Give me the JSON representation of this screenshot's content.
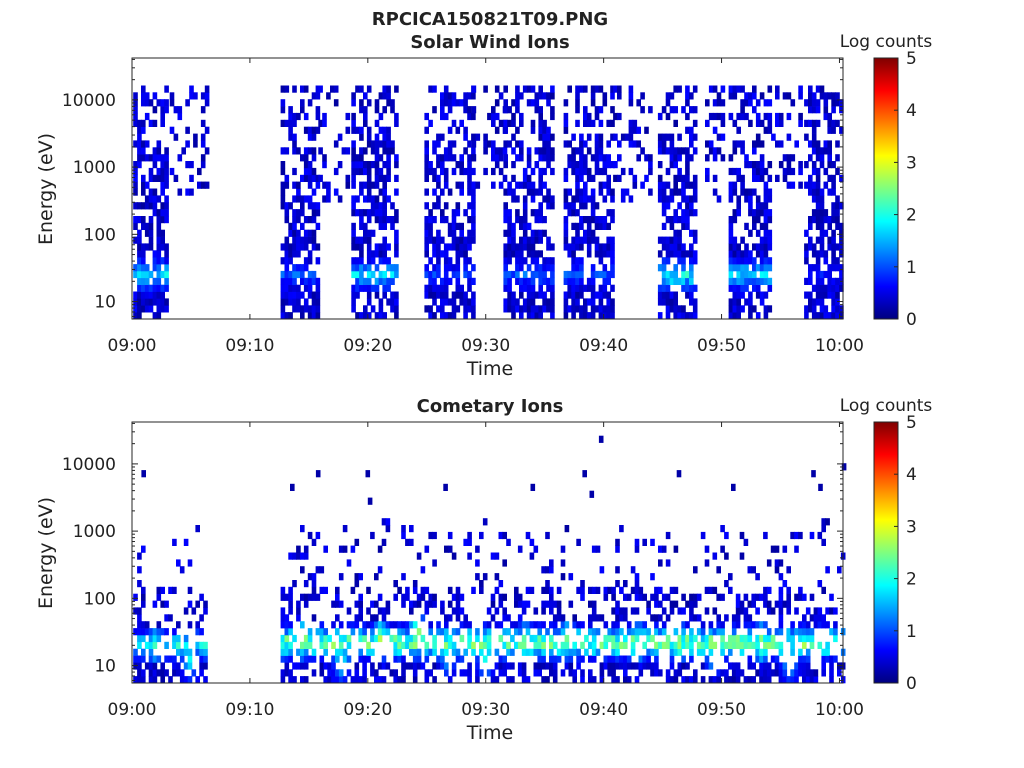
{
  "figure_title": "RPCICA150821T09.PNG",
  "colorbar_scale": [
    "#00007f",
    "#0000ff",
    "#007fff",
    "#00ffff",
    "#7fff7f",
    "#ffff00",
    "#ff7f00",
    "#ff0000",
    "#7f0000"
  ],
  "chart_data": [
    {
      "type": "heatmap",
      "title": "Solar Wind Ions",
      "xlabel": "Time",
      "ylabel": "Energy (eV)",
      "x_ticks": [
        "09:00",
        "09:10",
        "09:20",
        "09:30",
        "09:40",
        "09:50",
        "10:00"
      ],
      "x_range_minutes": [
        0,
        60.3
      ],
      "y_scale": "log",
      "y_ticks": [
        10,
        100,
        1000,
        10000
      ],
      "y_tick_labels": [
        "10",
        "100",
        "1000",
        "10000"
      ],
      "y_range": [
        5.5,
        42000
      ],
      "colorbar": {
        "label": "Log counts",
        "range": [
          0,
          5
        ],
        "ticks": [
          "0",
          "1",
          "2",
          "3",
          "4",
          "5"
        ]
      },
      "bursts": [
        {
          "start_min": 0.1,
          "end_min": 2.9,
          "emin": 6,
          "emax": 15000,
          "peak_energy": 25,
          "peak_level": 2.2
        },
        {
          "start_min": 3.2,
          "end_min": 6.2,
          "emin": 400,
          "emax": 15000,
          "peak_energy": 2000,
          "peak_level": 0.4
        },
        {
          "start_min": 12.6,
          "end_min": 15.8,
          "emin": 6,
          "emax": 15000,
          "peak_energy": 25,
          "peak_level": 1.3
        },
        {
          "start_min": 15.8,
          "end_min": 18.4,
          "emin": 300,
          "emax": 15000,
          "peak_energy": 2000,
          "peak_level": 0.3
        },
        {
          "start_min": 18.6,
          "end_min": 22.3,
          "emin": 6,
          "emax": 15000,
          "peak_energy": 25,
          "peak_level": 2.0
        },
        {
          "start_min": 24.8,
          "end_min": 28.8,
          "emin": 6,
          "emax": 15000,
          "peak_energy": 25,
          "peak_level": 1.1
        },
        {
          "start_min": 28.8,
          "end_min": 31.5,
          "emin": 500,
          "emax": 15000,
          "peak_energy": 2000,
          "peak_level": 0.3
        },
        {
          "start_min": 31.5,
          "end_min": 35.6,
          "emin": 6,
          "emax": 15000,
          "peak_energy": 25,
          "peak_level": 1.3
        },
        {
          "start_min": 36.6,
          "end_min": 40.8,
          "emin": 6,
          "emax": 15000,
          "peak_energy": 25,
          "peak_level": 1.2
        },
        {
          "start_min": 40.8,
          "end_min": 44.0,
          "emin": 300,
          "emax": 15000,
          "peak_energy": 2000,
          "peak_level": 0.3
        },
        {
          "start_min": 44.6,
          "end_min": 47.8,
          "emin": 6,
          "emax": 15000,
          "peak_energy": 25,
          "peak_level": 2.4
        },
        {
          "start_min": 48.6,
          "end_min": 50.0,
          "emin": 300,
          "emax": 15000,
          "peak_energy": 2000,
          "peak_level": 0.3
        },
        {
          "start_min": 50.6,
          "end_min": 54.2,
          "emin": 6,
          "emax": 15000,
          "peak_energy": 25,
          "peak_level": 2.1
        },
        {
          "start_min": 54.2,
          "end_min": 56.6,
          "emin": 500,
          "emax": 15000,
          "peak_energy": 2000,
          "peak_level": 0.3
        },
        {
          "start_min": 57.0,
          "end_min": 60.2,
          "emin": 6,
          "emax": 15000,
          "peak_energy": 25,
          "peak_level": 0.9
        }
      ]
    },
    {
      "type": "heatmap",
      "title": "Cometary Ions",
      "xlabel": "Time",
      "ylabel": "Energy (eV)",
      "x_ticks": [
        "09:00",
        "09:10",
        "09:20",
        "09:30",
        "09:40",
        "09:50",
        "10:00"
      ],
      "x_range_minutes": [
        0,
        60.3
      ],
      "y_scale": "log",
      "y_ticks": [
        10,
        100,
        1000,
        10000
      ],
      "y_tick_labels": [
        "10",
        "100",
        "1000",
        "10000"
      ],
      "y_range": [
        5.5,
        42000
      ],
      "colorbar": {
        "label": "Log counts",
        "range": [
          0,
          5
        ],
        "ticks": [
          "0",
          "1",
          "2",
          "3",
          "4",
          "5"
        ]
      },
      "bursts": [
        {
          "start_min": 0.1,
          "end_min": 6.2,
          "emin": 6,
          "emax": 1200,
          "peak_energy": 20,
          "peak_level": 2.3
        },
        {
          "start_min": 12.6,
          "end_min": 60.2,
          "emin": 6,
          "emax": 1500,
          "peak_energy": 22,
          "peak_level": 3.1
        }
      ],
      "hot_spots": [
        {
          "time_min": 1.8,
          "energy": 20,
          "level": 2.3
        },
        {
          "time_min": 4.7,
          "energy": 12,
          "level": 2.0
        },
        {
          "time_min": 14.2,
          "energy": 25,
          "level": 2.8
        },
        {
          "time_min": 17.6,
          "energy": 12,
          "level": 2.2
        },
        {
          "time_min": 20.9,
          "energy": 25,
          "level": 2.9
        },
        {
          "time_min": 24.0,
          "energy": 30,
          "level": 3.1
        },
        {
          "time_min": 26.6,
          "energy": 15,
          "level": 2.2
        },
        {
          "time_min": 29.8,
          "energy": 12,
          "level": 2.1
        },
        {
          "time_min": 33.2,
          "energy": 22,
          "level": 2.8
        },
        {
          "time_min": 36.8,
          "energy": 25,
          "level": 2.7
        },
        {
          "time_min": 42.8,
          "energy": 22,
          "level": 2.7
        },
        {
          "time_min": 46.2,
          "energy": 22,
          "level": 3.0
        },
        {
          "time_min": 49.2,
          "energy": 15,
          "level": 2.4
        },
        {
          "time_min": 53.2,
          "energy": 22,
          "level": 2.8
        },
        {
          "time_min": 55.6,
          "energy": 12,
          "level": 2.2
        }
      ],
      "sparse_high_energy_points": [
        {
          "time_min": 0.8,
          "energy": 6500
        },
        {
          "time_min": 13.4,
          "energy": 5000
        },
        {
          "time_min": 15.6,
          "energy": 7000
        },
        {
          "time_min": 19.8,
          "energy": 7500
        },
        {
          "time_min": 20.0,
          "energy": 3000
        },
        {
          "time_min": 26.4,
          "energy": 4000
        },
        {
          "time_min": 33.8,
          "energy": 4000
        },
        {
          "time_min": 38.2,
          "energy": 6800
        },
        {
          "time_min": 38.8,
          "energy": 3200
        },
        {
          "time_min": 39.6,
          "energy": 25000
        },
        {
          "time_min": 46.2,
          "energy": 7200
        },
        {
          "time_min": 50.8,
          "energy": 4200
        },
        {
          "time_min": 57.6,
          "energy": 7000
        },
        {
          "time_min": 58.2,
          "energy": 4000
        },
        {
          "time_min": 60.2,
          "energy": 9000
        }
      ]
    }
  ]
}
